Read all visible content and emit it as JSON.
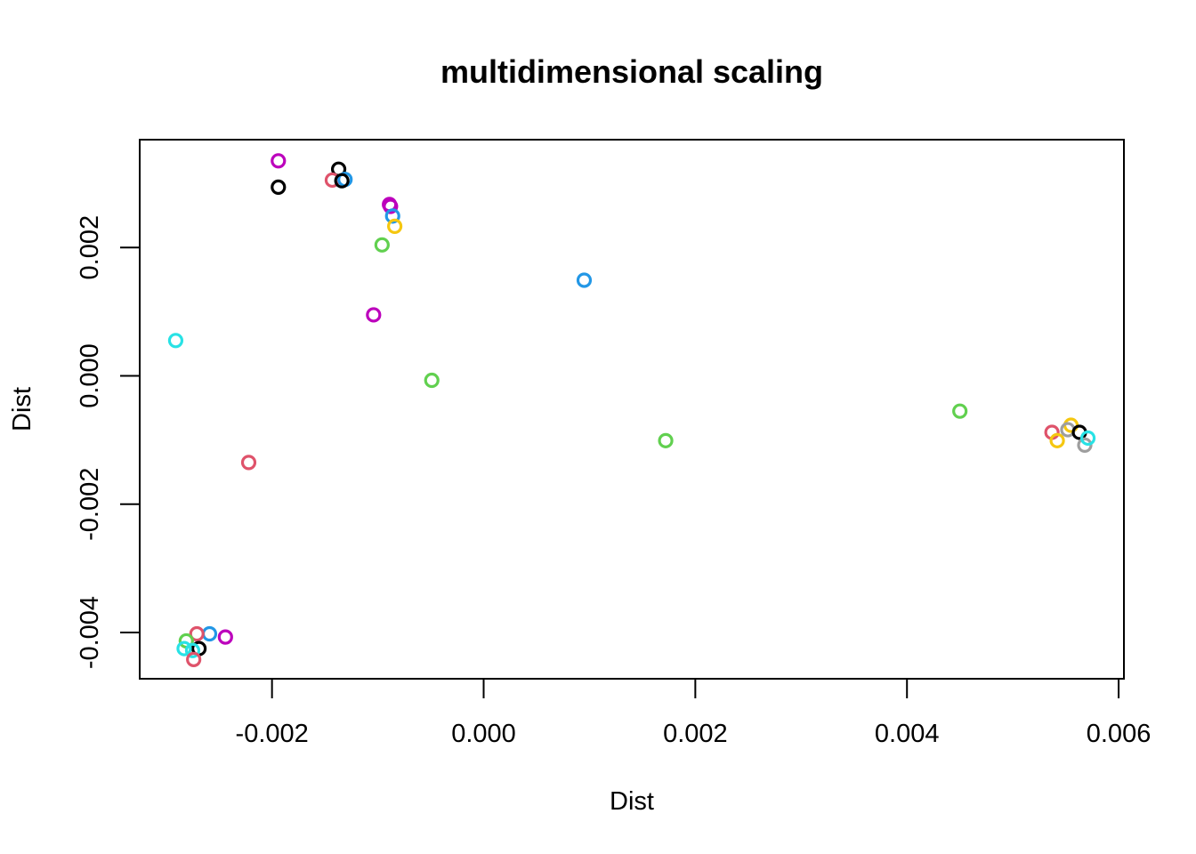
{
  "chart_data": {
    "type": "scatter",
    "title": "multidimensional scaling",
    "xlabel": "Dist",
    "ylabel": "Dist",
    "xlim": [
      -0.00325,
      0.00605
    ],
    "ylim": [
      -0.00472,
      0.00368
    ],
    "xticks": [
      -0.002,
      0.0,
      0.002,
      0.004,
      0.006
    ],
    "xtick_labels": [
      "-0.002",
      "0.000",
      "0.002",
      "0.004",
      "0.006"
    ],
    "yticks": [
      -0.004,
      -0.002,
      0.0,
      0.002
    ],
    "ytick_labels": [
      "-0.004",
      "-0.002",
      "0.000",
      "0.002"
    ],
    "grid": false,
    "legend": "none",
    "marker": "open-circle",
    "points": [
      {
        "x": -0.00194,
        "y": 0.00335,
        "color": "#BC00BC"
      },
      {
        "x": -0.00137,
        "y": 0.00322,
        "color": "#000000"
      },
      {
        "x": -0.00194,
        "y": 0.00294,
        "color": "#000000"
      },
      {
        "x": -0.00143,
        "y": 0.00305,
        "color": "#DF536B"
      },
      {
        "x": -0.00131,
        "y": 0.00306,
        "color": "#2297E6"
      },
      {
        "x": -0.00134,
        "y": 0.00304,
        "color": "#000000"
      },
      {
        "x": -0.00089,
        "y": 0.00267,
        "color": "#BC00BC"
      },
      {
        "x": -0.00088,
        "y": 0.00264,
        "color": "#BC00BC"
      },
      {
        "x": -0.00086,
        "y": 0.00249,
        "color": "#2297E6"
      },
      {
        "x": -0.00084,
        "y": 0.00233,
        "color": "#F5C710"
      },
      {
        "x": -0.00096,
        "y": 0.00204,
        "color": "#61D04F"
      },
      {
        "x": 0.00095,
        "y": 0.00149,
        "color": "#2297E6"
      },
      {
        "x": -0.00104,
        "y": 0.00095,
        "color": "#BC00BC"
      },
      {
        "x": -0.00291,
        "y": 0.00055,
        "color": "#28E2E5"
      },
      {
        "x": -0.00049,
        "y": -7e-05,
        "color": "#61D04F"
      },
      {
        "x": 0.0045,
        "y": -0.00055,
        "color": "#61D04F"
      },
      {
        "x": 0.00172,
        "y": -0.00101,
        "color": "#61D04F"
      },
      {
        "x": -0.00222,
        "y": -0.00135,
        "color": "#DF536B"
      },
      {
        "x": 0.00537,
        "y": -0.00088,
        "color": "#DF536B"
      },
      {
        "x": 0.00542,
        "y": -0.00101,
        "color": "#F5C710"
      },
      {
        "x": 0.00555,
        "y": -0.00077,
        "color": "#F5C710"
      },
      {
        "x": 0.00552,
        "y": -0.00084,
        "color": "#9E9E9E"
      },
      {
        "x": 0.00563,
        "y": -0.00088,
        "color": "#000000"
      },
      {
        "x": 0.00568,
        "y": -0.00108,
        "color": "#9E9E9E"
      },
      {
        "x": 0.00571,
        "y": -0.00097,
        "color": "#28E2E5"
      },
      {
        "x": -0.00244,
        "y": -0.00407,
        "color": "#BC00BC"
      },
      {
        "x": -0.00259,
        "y": -0.00402,
        "color": "#2297E6"
      },
      {
        "x": -0.00271,
        "y": -0.00402,
        "color": "#DF536B"
      },
      {
        "x": -0.00281,
        "y": -0.00413,
        "color": "#61D04F"
      },
      {
        "x": -0.00269,
        "y": -0.00425,
        "color": "#000000"
      },
      {
        "x": -0.00275,
        "y": -0.00428,
        "color": "#28E2E5"
      },
      {
        "x": -0.00283,
        "y": -0.00425,
        "color": "#28E2E5"
      },
      {
        "x": -0.00274,
        "y": -0.00442,
        "color": "#DF536B"
      }
    ]
  }
}
